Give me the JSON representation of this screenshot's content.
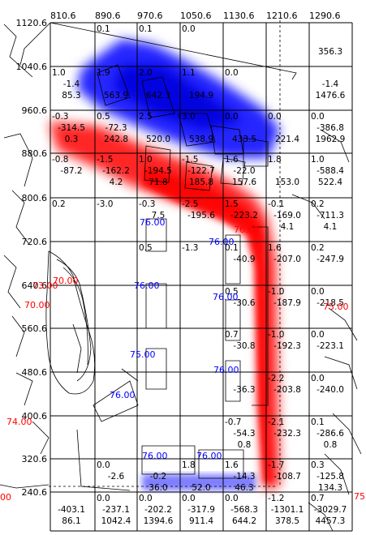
{
  "x_ticks": [
    "810.6",
    "890.6",
    "970.6",
    "1050.6",
    "1130.6",
    "1210.6",
    "1290.6"
  ],
  "y_ticks": [
    "1120.6",
    "1040.6",
    "960.6",
    "880.6",
    "800.6",
    "720.6",
    "640.6",
    "560.6",
    "480.6",
    "400.6",
    "320.6",
    "240.6"
  ],
  "cells": [
    {
      "r": 0,
      "c": 1,
      "lines": [
        "0.1"
      ]
    },
    {
      "r": 0,
      "c": 2,
      "lines": [
        "0.1"
      ]
    },
    {
      "r": 0,
      "c": 3,
      "lines": [
        "0.0"
      ]
    },
    {
      "r": 0,
      "c": 6,
      "lines": [
        "",
        "",
        "356.3"
      ]
    },
    {
      "r": 1,
      "c": 0,
      "lines": [
        "1.0",
        "-1.4",
        "85.3"
      ]
    },
    {
      "r": 1,
      "c": 1,
      "lines": [
        "1.9",
        "",
        "563.9"
      ]
    },
    {
      "r": 1,
      "c": 2,
      "lines": [
        "2.0",
        "",
        "642.3"
      ]
    },
    {
      "r": 1,
      "c": 3,
      "lines": [
        "1.1",
        "",
        "194.9"
      ]
    },
    {
      "r": 1,
      "c": 4,
      "lines": [
        "0.0"
      ]
    },
    {
      "r": 1,
      "c": 6,
      "lines": [
        "",
        "-1.4",
        "1476.6"
      ]
    },
    {
      "r": 2,
      "c": 0,
      "lines": [
        "-0.3",
        "-314.5",
        "0.3"
      ]
    },
    {
      "r": 2,
      "c": 1,
      "lines": [
        "0.5",
        "-72.3",
        "242.8"
      ]
    },
    {
      "r": 2,
      "c": 2,
      "lines": [
        "2.5",
        "",
        "520.0"
      ]
    },
    {
      "r": 2,
      "c": 3,
      "lines": [
        "3.0",
        "",
        "538.9"
      ]
    },
    {
      "r": 2,
      "c": 4,
      "lines": [
        "0.0",
        "",
        "433.5"
      ]
    },
    {
      "r": 2,
      "c": 5,
      "lines": [
        "0.0",
        "",
        "221.4"
      ]
    },
    {
      "r": 2,
      "c": 6,
      "lines": [
        "0.0",
        "-386.8",
        "1962.9"
      ]
    },
    {
      "r": 3,
      "c": 0,
      "lines": [
        "-0.8",
        "-87.2",
        ""
      ]
    },
    {
      "r": 3,
      "c": 1,
      "lines": [
        "-1.5",
        "-162.2",
        "4.2"
      ]
    },
    {
      "r": 3,
      "c": 2,
      "lines": [
        "1.0",
        "-194.5",
        "71.8"
      ]
    },
    {
      "r": 3,
      "c": 3,
      "lines": [
        "-1.5",
        "-122.7",
        "185.8"
      ]
    },
    {
      "r": 3,
      "c": 4,
      "lines": [
        "1.6",
        "-22.0",
        "157.6"
      ]
    },
    {
      "r": 3,
      "c": 5,
      "lines": [
        "1.8",
        "",
        "153.0"
      ]
    },
    {
      "r": 3,
      "c": 6,
      "lines": [
        "1.0",
        "-588.4",
        "522.4"
      ]
    },
    {
      "r": 4,
      "c": 0,
      "lines": [
        "0.2"
      ]
    },
    {
      "r": 4,
      "c": 1,
      "lines": [
        "-3.0"
      ]
    },
    {
      "r": 4,
      "c": 2,
      "lines": [
        "-0.3",
        "7.5",
        ""
      ]
    },
    {
      "r": 4,
      "c": 3,
      "lines": [
        "-2.5",
        "-195.6",
        ""
      ]
    },
    {
      "r": 4,
      "c": 4,
      "lines": [
        "1.5",
        "-223.2",
        ""
      ]
    },
    {
      "r": 4,
      "c": 5,
      "lines": [
        "-0.1",
        "-169.0",
        "4.1"
      ]
    },
    {
      "r": 4,
      "c": 6,
      "lines": [
        "0.2",
        "-711.3",
        "4.1"
      ]
    },
    {
      "r": 5,
      "c": 2,
      "lines": [
        "0.5"
      ]
    },
    {
      "r": 5,
      "c": 3,
      "lines": [
        "-1.3"
      ]
    },
    {
      "r": 5,
      "c": 4,
      "lines": [
        "0.1",
        "-40.9",
        ""
      ]
    },
    {
      "r": 5,
      "c": 5,
      "lines": [
        "1.6",
        "-207.0",
        ""
      ]
    },
    {
      "r": 5,
      "c": 6,
      "lines": [
        "0.2",
        "-247.9",
        ""
      ]
    },
    {
      "r": 6,
      "c": 4,
      "lines": [
        "0.5",
        "-30.6",
        ""
      ]
    },
    {
      "r": 6,
      "c": 5,
      "lines": [
        "-1.0",
        "-187.9",
        ""
      ]
    },
    {
      "r": 6,
      "c": 6,
      "lines": [
        "0.0",
        "-218.5",
        ""
      ]
    },
    {
      "r": 7,
      "c": 4,
      "lines": [
        "0.7",
        "-30.8",
        ""
      ]
    },
    {
      "r": 7,
      "c": 5,
      "lines": [
        "-1.0",
        "-192.3",
        ""
      ]
    },
    {
      "r": 7,
      "c": 6,
      "lines": [
        "0.0",
        "-223.1",
        ""
      ]
    },
    {
      "r": 8,
      "c": 4,
      "lines": [
        "",
        "-36.3",
        ""
      ]
    },
    {
      "r": 8,
      "c": 5,
      "lines": [
        "-2.2",
        "-203.8",
        ""
      ]
    },
    {
      "r": 8,
      "c": 6,
      "lines": [
        "0.0",
        "-240.0",
        ""
      ]
    },
    {
      "r": 9,
      "c": 4,
      "lines": [
        "-0.7",
        "-54.3",
        "0.8"
      ]
    },
    {
      "r": 9,
      "c": 5,
      "lines": [
        "-2.1",
        "-232.3",
        ""
      ]
    },
    {
      "r": 9,
      "c": 6,
      "lines": [
        "0.1",
        "-286.6",
        "0.8"
      ]
    },
    {
      "r": 10,
      "c": 1,
      "lines": [
        "0.0",
        "-2.6",
        ""
      ]
    },
    {
      "r": 10,
      "c": 2,
      "lines": [
        "",
        "-0.2",
        "36.0"
      ]
    },
    {
      "r": 10,
      "c": 3,
      "lines": [
        "1.8",
        "",
        "52.0"
      ]
    },
    {
      "r": 10,
      "c": 4,
      "lines": [
        "1.6",
        "-14.3",
        "46.3"
      ]
    },
    {
      "r": 10,
      "c": 5,
      "lines": [
        "-1.7",
        "-108.7",
        ""
      ]
    },
    {
      "r": 10,
      "c": 6,
      "lines": [
        "0.3",
        "-125.8",
        "134.3"
      ]
    },
    {
      "r": 11,
      "c": 1,
      "lines": [
        "0.0",
        "-237.1",
        "1042.4"
      ]
    },
    {
      "r": 11,
      "c": 2,
      "lines": [
        "0.0",
        "-202.2",
        "1394.6"
      ]
    },
    {
      "r": 11,
      "c": 3,
      "lines": [
        "0.0",
        "-317.9",
        "911.4"
      ]
    },
    {
      "r": 11,
      "c": 4,
      "lines": [
        "0.0",
        "-568.3",
        "644.2"
      ]
    },
    {
      "r": 11,
      "c": 5,
      "lines": [
        "-1.2",
        "-1301.1",
        "378.5"
      ]
    },
    {
      "r": 11,
      "c": 6,
      "lines": [
        "0.7",
        "-3029.7",
        "4457.3"
      ]
    },
    {
      "r": 11,
      "c": 0,
      "lines": [
        "",
        "-403.1",
        "86.1"
      ]
    }
  ],
  "contour_labels": [
    {
      "text": "76.00",
      "color": "#0000ff"
    },
    {
      "text": "76.00",
      "color": "#0000ff"
    },
    {
      "text": "76.00",
      "color": "#ff0000"
    },
    {
      "text": "76.00",
      "color": "#0000ff"
    },
    {
      "text": "76.00",
      "color": "#0000ff"
    },
    {
      "text": "75.00",
      "color": "#0000ff"
    },
    {
      "text": "76.00",
      "color": "#0000ff"
    },
    {
      "text": "76.00",
      "color": "#0000ff"
    },
    {
      "text": "76.00",
      "color": "#0000ff"
    },
    {
      "text": "76.00",
      "color": "#0000ff"
    },
    {
      "text": "73.00",
      "color": "#ff0000"
    },
    {
      "text": "70.00",
      "color": "#ff0000"
    },
    {
      "text": "70.00",
      "color": "#ff0000"
    },
    {
      "text": "75.00",
      "color": "#ff0000"
    },
    {
      "text": "74.00",
      "color": "#ff0000"
    },
    {
      "text": "00",
      "color": "#ff0000"
    },
    {
      "text": "75",
      "color": "#ff0000"
    }
  ],
  "colors": {
    "cold": "#0000ff",
    "warm": "#ff0000",
    "grid": "#000000"
  }
}
